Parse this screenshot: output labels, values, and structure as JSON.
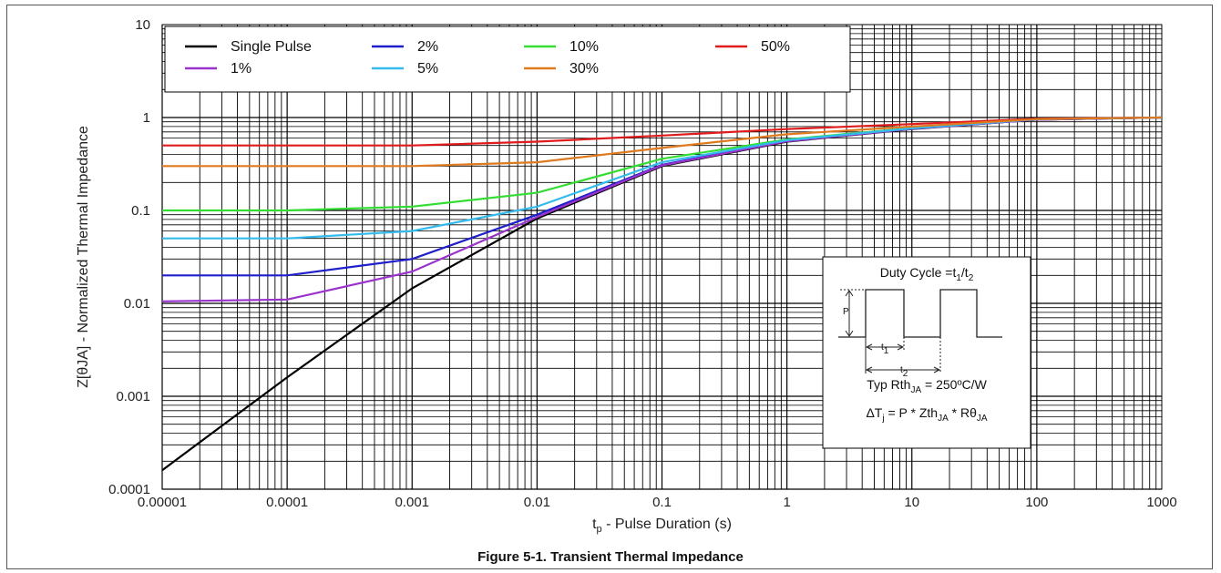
{
  "chart_data": {
    "type": "line",
    "xscale": "log",
    "yscale": "log",
    "xlim": [
      1e-05,
      1000
    ],
    "ylim": [
      0.0001,
      10
    ],
    "xlabel_main": "t",
    "xlabel_sub": "p",
    "xlabel_rest": " - Pulse Duration (s)",
    "ylabel": "Z[θJA] - Normalized Thermal Impedance",
    "x_ticks": [
      "0.00001",
      "0.0001",
      "0.001",
      "0.01",
      "0.1",
      "1",
      "10",
      "100",
      "1000"
    ],
    "y_ticks": [
      "0.0001",
      "0.001",
      "0.01",
      "0.1",
      "1",
      "10"
    ],
    "grid": true,
    "legend_position": "top-left",
    "series": [
      {
        "name": "Single Pulse",
        "color": "#000000",
        "points": [
          [
            1e-05,
            0.00016
          ],
          [
            0.0001,
            0.0016
          ],
          [
            0.001,
            0.0145
          ],
          [
            0.01,
            0.082
          ],
          [
            0.1,
            0.3
          ],
          [
            1,
            0.55
          ],
          [
            10,
            0.75
          ],
          [
            100,
            0.95
          ],
          [
            1000,
            1.0
          ]
        ]
      },
      {
        "name": "2%",
        "color": "#1f1fcc",
        "points": [
          [
            1e-05,
            0.02
          ],
          [
            0.0001,
            0.02
          ],
          [
            0.001,
            0.03
          ],
          [
            0.01,
            0.09
          ],
          [
            0.1,
            0.31
          ],
          [
            1,
            0.56
          ],
          [
            10,
            0.76
          ],
          [
            100,
            0.95
          ],
          [
            1000,
            1.0
          ]
        ]
      },
      {
        "name": "10%",
        "color": "#33dd33",
        "points": [
          [
            1e-05,
            0.1
          ],
          [
            0.0001,
            0.1
          ],
          [
            0.001,
            0.11
          ],
          [
            0.01,
            0.155
          ],
          [
            0.1,
            0.36
          ],
          [
            1,
            0.58
          ],
          [
            10,
            0.77
          ],
          [
            100,
            0.96
          ],
          [
            1000,
            1.0
          ]
        ]
      },
      {
        "name": "50%",
        "color": "#e01b1b",
        "points": [
          [
            1e-05,
            0.5
          ],
          [
            0.0001,
            0.5
          ],
          [
            0.001,
            0.5
          ],
          [
            0.01,
            0.55
          ],
          [
            0.1,
            0.64
          ],
          [
            1,
            0.75
          ],
          [
            10,
            0.85
          ],
          [
            100,
            0.97
          ],
          [
            1000,
            1.0
          ]
        ]
      },
      {
        "name": "1%",
        "color": "#9933cc",
        "points": [
          [
            1e-05,
            0.0105
          ],
          [
            0.0001,
            0.011
          ],
          [
            0.001,
            0.022
          ],
          [
            0.01,
            0.085
          ],
          [
            0.1,
            0.305
          ],
          [
            1,
            0.555
          ],
          [
            10,
            0.755
          ],
          [
            100,
            0.95
          ],
          [
            1000,
            1.0
          ]
        ]
      },
      {
        "name": "5%",
        "color": "#33bbee",
        "points": [
          [
            1e-05,
            0.05
          ],
          [
            0.0001,
            0.05
          ],
          [
            0.001,
            0.06
          ],
          [
            0.01,
            0.11
          ],
          [
            0.1,
            0.33
          ],
          [
            1,
            0.57
          ],
          [
            10,
            0.765
          ],
          [
            100,
            0.955
          ],
          [
            1000,
            1.0
          ]
        ]
      },
      {
        "name": "30%",
        "color": "#e07a1f",
        "points": [
          [
            1e-05,
            0.3
          ],
          [
            0.0001,
            0.3
          ],
          [
            0.001,
            0.3
          ],
          [
            0.01,
            0.33
          ],
          [
            0.1,
            0.47
          ],
          [
            1,
            0.66
          ],
          [
            10,
            0.8
          ],
          [
            100,
            0.96
          ],
          [
            1000,
            1.0
          ]
        ]
      }
    ],
    "inset": {
      "duty_cycle": "Duty Cycle =t",
      "sub1": "1",
      "slash": "/t",
      "sub2": "2",
      "p_label": "P",
      "t1_label": "t",
      "t1_sub": "1",
      "t2_label": "t",
      "t2_sub": "2",
      "rth_pre": "Typ Rth",
      "rth_sub": "JA",
      "rth_post": " = 250ºC/W",
      "eq_pre": "ΔT",
      "eq_sub_j": "j",
      "eq_mid": " = P * Zth",
      "eq_sub_ja1": "JA",
      "eq_mid2": " * Rθ",
      "eq_sub_ja2": "JA"
    }
  },
  "caption": "Figure 5-1. Transient Thermal Impedance"
}
